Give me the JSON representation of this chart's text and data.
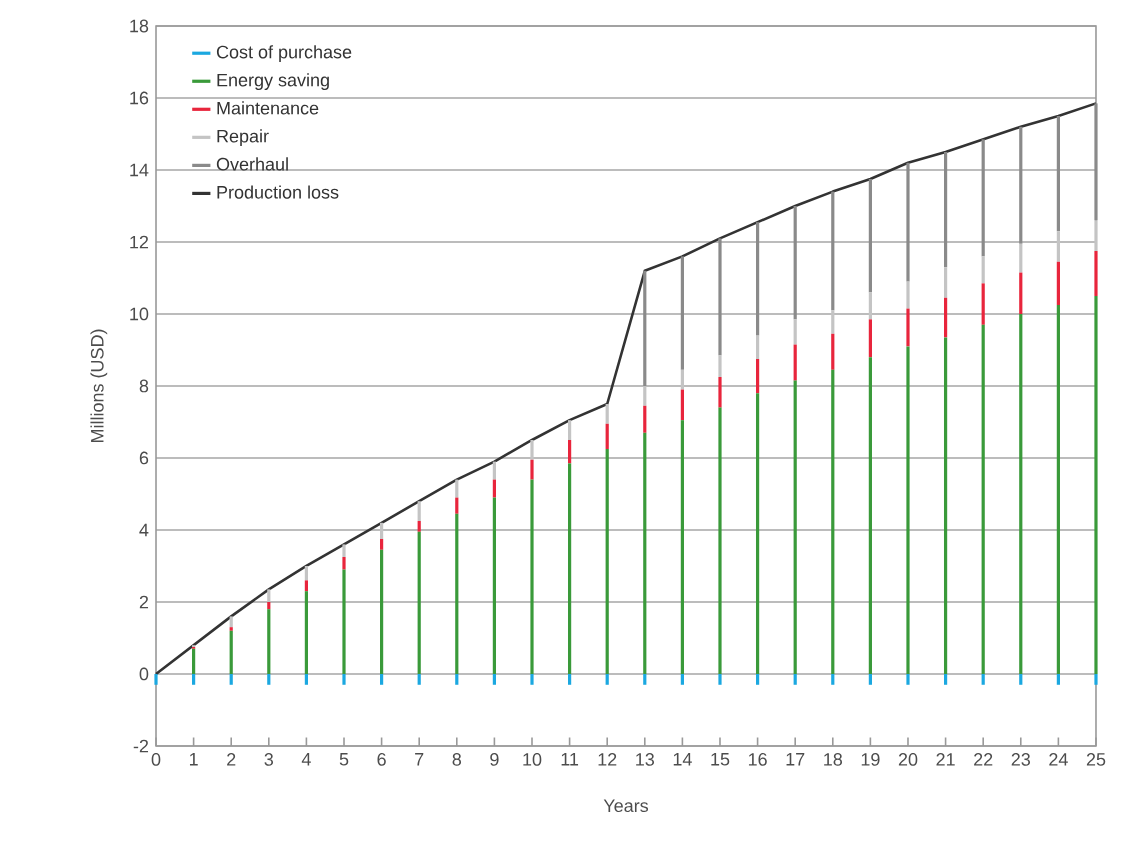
{
  "chart_data": {
    "type": "bar",
    "stacked": true,
    "xlabel": "Years",
    "ylabel": "Millions (USD)",
    "x": [
      0,
      1,
      2,
      3,
      4,
      5,
      6,
      7,
      8,
      9,
      10,
      11,
      12,
      13,
      14,
      15,
      16,
      17,
      18,
      19,
      20,
      21,
      22,
      23,
      24,
      25
    ],
    "xlim": [
      0,
      25
    ],
    "xticks": [
      0,
      1,
      2,
      3,
      4,
      5,
      6,
      7,
      8,
      9,
      10,
      11,
      12,
      13,
      14,
      15,
      16,
      17,
      18,
      19,
      20,
      21,
      22,
      23,
      24,
      25
    ],
    "ylim": [
      -2,
      18
    ],
    "yticks": [
      -2,
      0,
      2,
      4,
      6,
      8,
      10,
      12,
      14,
      16,
      18
    ],
    "grid": "y",
    "legend": "top left",
    "series": [
      {
        "name": "Cost of purchase",
        "color": "#1ba8e0",
        "values": [
          -0.3,
          -0.3,
          -0.3,
          -0.3,
          -0.3,
          -0.3,
          -0.3,
          -0.3,
          -0.3,
          -0.3,
          -0.3,
          -0.3,
          -0.3,
          -0.3,
          -0.3,
          -0.3,
          -0.3,
          -0.3,
          -0.3,
          -0.3,
          -0.3,
          -0.3,
          -0.3,
          -0.3,
          -0.3,
          -0.3
        ]
      },
      {
        "name": "Energy saving",
        "color": "#3a9a3a",
        "values": [
          0,
          0.7,
          1.2,
          1.8,
          2.3,
          2.9,
          3.45,
          3.95,
          4.45,
          4.9,
          5.4,
          5.85,
          6.25,
          6.7,
          7.05,
          7.4,
          7.8,
          8.15,
          8.45,
          8.8,
          9.1,
          9.35,
          9.7,
          10.0,
          10.25,
          10.5
        ]
      },
      {
        "name": "Maintenance",
        "color": "#e8253c",
        "values": [
          0,
          0.05,
          0.1,
          0.2,
          0.3,
          0.35,
          0.3,
          0.3,
          0.45,
          0.5,
          0.55,
          0.65,
          0.7,
          0.75,
          0.85,
          0.85,
          0.95,
          1.0,
          1.0,
          1.05,
          1.05,
          1.1,
          1.15,
          1.15,
          1.2,
          1.25
        ]
      },
      {
        "name": "Repair",
        "color": "#c4c4c4",
        "values": [
          0,
          0.05,
          0.3,
          0.35,
          0.4,
          0.35,
          0.45,
          0.55,
          0.5,
          0.5,
          0.55,
          0.55,
          0.55,
          0.55,
          0.55,
          0.6,
          0.65,
          0.7,
          0.65,
          0.75,
          0.75,
          0.85,
          0.75,
          0.8,
          0.85,
          0.85
        ]
      },
      {
        "name": "Overhaul",
        "color": "#8a8a8a",
        "values": [
          0,
          0,
          0,
          0,
          0,
          0,
          0,
          0,
          0,
          0,
          0,
          0,
          0,
          3.2,
          3.15,
          3.25,
          3.15,
          3.15,
          3.3,
          3.15,
          3.3,
          3.2,
          3.25,
          3.25,
          3.2,
          3.25
        ]
      },
      {
        "name": "Production loss",
        "type": "line",
        "color": "#333333",
        "values": [
          0,
          0.8,
          1.6,
          2.35,
          3.0,
          3.6,
          4.2,
          4.8,
          5.4,
          5.9,
          6.5,
          7.05,
          7.5,
          11.2,
          11.6,
          12.1,
          12.55,
          13.0,
          13.4,
          13.75,
          14.2,
          14.5,
          14.85,
          15.2,
          15.5,
          15.85
        ]
      }
    ]
  }
}
